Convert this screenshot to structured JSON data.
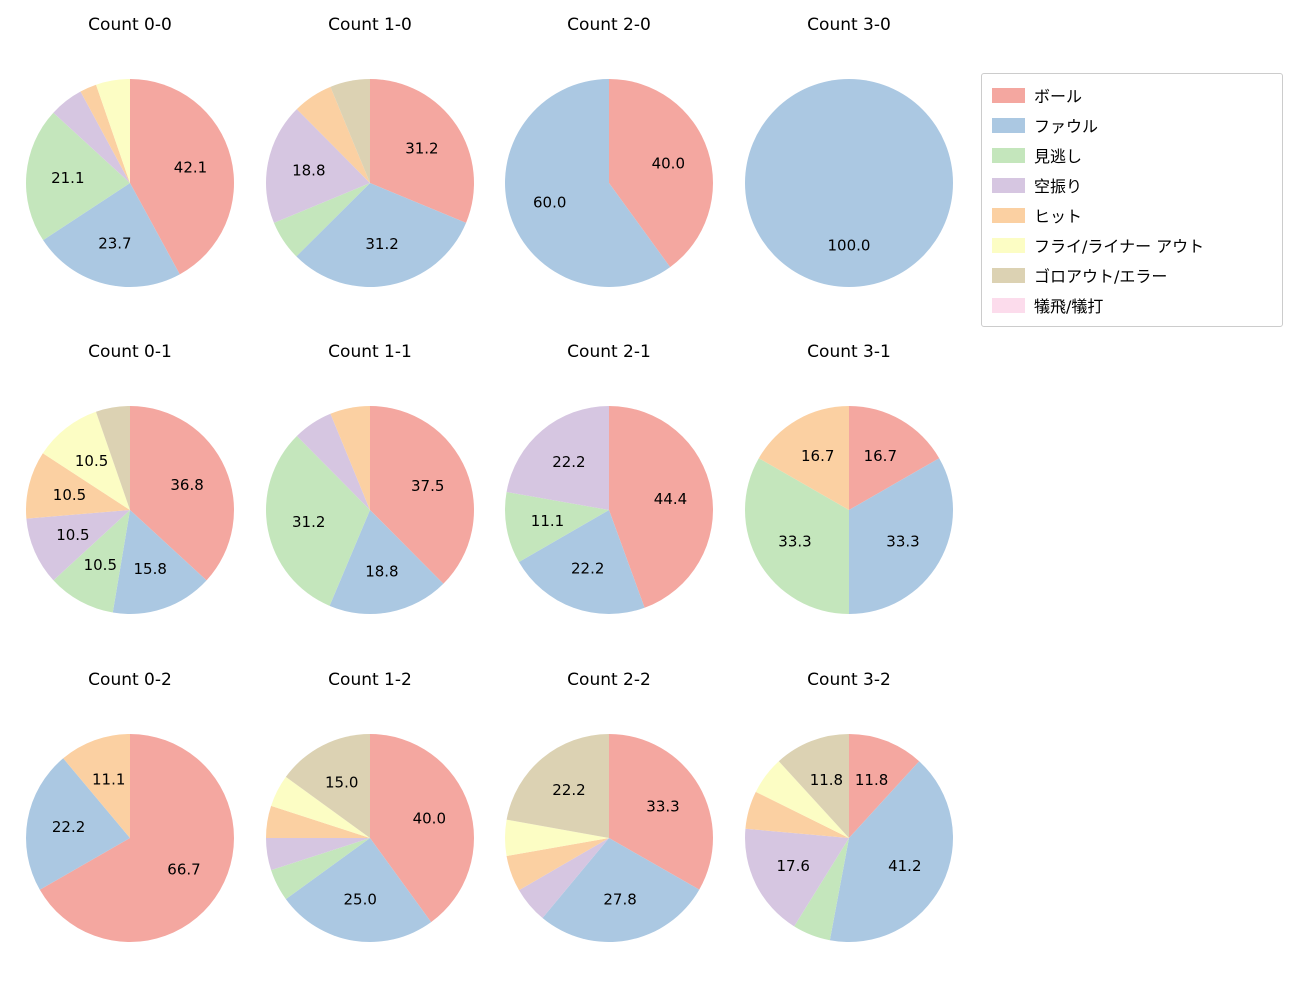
{
  "figure": {
    "background": "#ffffff"
  },
  "label_min_pct": 10,
  "legend": {
    "items": [
      {
        "key": "ball",
        "label": "ボール",
        "color": "#f4a7a0"
      },
      {
        "key": "foul",
        "label": "ファウル",
        "color": "#abc8e2"
      },
      {
        "key": "called-strike",
        "label": "見逃し",
        "color": "#c4e6bc"
      },
      {
        "key": "swinging-strike",
        "label": "空振り",
        "color": "#d6c6e1"
      },
      {
        "key": "hit",
        "label": "ヒット",
        "color": "#fbd0a2"
      },
      {
        "key": "fly-liner-out",
        "label": "フライ/ライナー アウト",
        "color": "#fcfdc4"
      },
      {
        "key": "groundout-error",
        "label": "ゴロアウト/エラー",
        "color": "#dcd2b3"
      },
      {
        "key": "sac-fly-bunt",
        "label": "犠飛/犠打",
        "color": "#fcdcec"
      }
    ]
  },
  "chart_data": [
    {
      "type": "pie",
      "title": "Count 0-0",
      "start_angle": "top",
      "direction": "clockwise",
      "slices": [
        {
          "key": "ball",
          "category": "ボール",
          "value": 42.1
        },
        {
          "key": "foul",
          "category": "ファウル",
          "value": 23.7
        },
        {
          "key": "called-strike",
          "category": "見逃し",
          "value": 21.1
        },
        {
          "key": "swinging-strike",
          "category": "空振り",
          "value": 5.3
        },
        {
          "key": "hit",
          "category": "ヒット",
          "value": 2.6
        },
        {
          "key": "fly-liner-out",
          "category": "フライ/ライナー アウト",
          "value": 5.3
        }
      ]
    },
    {
      "type": "pie",
      "title": "Count 1-0",
      "start_angle": "top",
      "direction": "clockwise",
      "slices": [
        {
          "key": "ball",
          "category": "ボール",
          "value": 31.2
        },
        {
          "key": "foul",
          "category": "ファウル",
          "value": 31.2
        },
        {
          "key": "called-strike",
          "category": "見逃し",
          "value": 6.2
        },
        {
          "key": "swinging-strike",
          "category": "空振り",
          "value": 18.8
        },
        {
          "key": "hit",
          "category": "ヒット",
          "value": 6.2
        },
        {
          "key": "groundout-error",
          "category": "ゴロアウト/エラー",
          "value": 6.2
        }
      ]
    },
    {
      "type": "pie",
      "title": "Count 2-0",
      "start_angle": "top",
      "direction": "clockwise",
      "slices": [
        {
          "key": "ball",
          "category": "ボール",
          "value": 40.0
        },
        {
          "key": "foul",
          "category": "ファウル",
          "value": 60.0
        }
      ]
    },
    {
      "type": "pie",
      "title": "Count 3-0",
      "start_angle": "top",
      "direction": "clockwise",
      "slices": [
        {
          "key": "foul",
          "category": "ファウル",
          "value": 100.0
        }
      ]
    },
    {
      "type": "pie",
      "title": "Count 0-1",
      "start_angle": "top",
      "direction": "clockwise",
      "slices": [
        {
          "key": "ball",
          "category": "ボール",
          "value": 36.8
        },
        {
          "key": "foul",
          "category": "ファウル",
          "value": 15.8
        },
        {
          "key": "called-strike",
          "category": "見逃し",
          "value": 10.5
        },
        {
          "key": "swinging-strike",
          "category": "空振り",
          "value": 10.5
        },
        {
          "key": "hit",
          "category": "ヒット",
          "value": 10.5
        },
        {
          "key": "fly-liner-out",
          "category": "フライ/ライナー アウト",
          "value": 10.5
        },
        {
          "key": "groundout-error",
          "category": "ゴロアウト/エラー",
          "value": 5.3
        }
      ]
    },
    {
      "type": "pie",
      "title": "Count 1-1",
      "start_angle": "top",
      "direction": "clockwise",
      "slices": [
        {
          "key": "ball",
          "category": "ボール",
          "value": 37.5
        },
        {
          "key": "foul",
          "category": "ファウル",
          "value": 18.8
        },
        {
          "key": "called-strike",
          "category": "見逃し",
          "value": 31.2
        },
        {
          "key": "swinging-strike",
          "category": "空振り",
          "value": 6.2
        },
        {
          "key": "hit",
          "category": "ヒット",
          "value": 6.2
        }
      ]
    },
    {
      "type": "pie",
      "title": "Count 2-1",
      "start_angle": "top",
      "direction": "clockwise",
      "slices": [
        {
          "key": "ball",
          "category": "ボール",
          "value": 44.4
        },
        {
          "key": "foul",
          "category": "ファウル",
          "value": 22.2
        },
        {
          "key": "called-strike",
          "category": "見逃し",
          "value": 11.1
        },
        {
          "key": "swinging-strike",
          "category": "空振り",
          "value": 22.2
        }
      ]
    },
    {
      "type": "pie",
      "title": "Count 3-1",
      "start_angle": "top",
      "direction": "clockwise",
      "slices": [
        {
          "key": "ball",
          "category": "ボール",
          "value": 16.7
        },
        {
          "key": "foul",
          "category": "ファウル",
          "value": 33.3
        },
        {
          "key": "called-strike",
          "category": "見逃し",
          "value": 33.3
        },
        {
          "key": "hit",
          "category": "ヒット",
          "value": 16.7
        }
      ]
    },
    {
      "type": "pie",
      "title": "Count 0-2",
      "start_angle": "top",
      "direction": "clockwise",
      "slices": [
        {
          "key": "ball",
          "category": "ボール",
          "value": 66.7
        },
        {
          "key": "foul",
          "category": "ファウル",
          "value": 22.2
        },
        {
          "key": "hit",
          "category": "ヒット",
          "value": 11.1
        }
      ]
    },
    {
      "type": "pie",
      "title": "Count 1-2",
      "start_angle": "top",
      "direction": "clockwise",
      "slices": [
        {
          "key": "ball",
          "category": "ボール",
          "value": 40.0
        },
        {
          "key": "foul",
          "category": "ファウル",
          "value": 25.0
        },
        {
          "key": "called-strike",
          "category": "見逃し",
          "value": 5.0
        },
        {
          "key": "swinging-strike",
          "category": "空振り",
          "value": 5.0
        },
        {
          "key": "hit",
          "category": "ヒット",
          "value": 5.0
        },
        {
          "key": "fly-liner-out",
          "category": "フライ/ライナー アウト",
          "value": 5.0
        },
        {
          "key": "groundout-error",
          "category": "ゴロアウト/エラー",
          "value": 15.0
        }
      ]
    },
    {
      "type": "pie",
      "title": "Count 2-2",
      "start_angle": "top",
      "direction": "clockwise",
      "slices": [
        {
          "key": "ball",
          "category": "ボール",
          "value": 33.3
        },
        {
          "key": "foul",
          "category": "ファウル",
          "value": 27.8
        },
        {
          "key": "swinging-strike",
          "category": "空振り",
          "value": 5.6
        },
        {
          "key": "hit",
          "category": "ヒット",
          "value": 5.6
        },
        {
          "key": "fly-liner-out",
          "category": "フライ/ライナー アウト",
          "value": 5.6
        },
        {
          "key": "groundout-error",
          "category": "ゴロアウト/エラー",
          "value": 22.2
        }
      ]
    },
    {
      "type": "pie",
      "title": "Count 3-2",
      "start_angle": "top",
      "direction": "clockwise",
      "slices": [
        {
          "key": "ball",
          "category": "ボール",
          "value": 11.8
        },
        {
          "key": "foul",
          "category": "ファウル",
          "value": 41.2
        },
        {
          "key": "called-strike",
          "category": "見逃し",
          "value": 5.9
        },
        {
          "key": "swinging-strike",
          "category": "空振り",
          "value": 17.6
        },
        {
          "key": "hit",
          "category": "ヒット",
          "value": 5.9
        },
        {
          "key": "fly-liner-out",
          "category": "フライ/ライナー アウト",
          "value": 5.9
        },
        {
          "key": "groundout-error",
          "category": "ゴロアウト/エラー",
          "value": 11.8
        }
      ]
    }
  ]
}
